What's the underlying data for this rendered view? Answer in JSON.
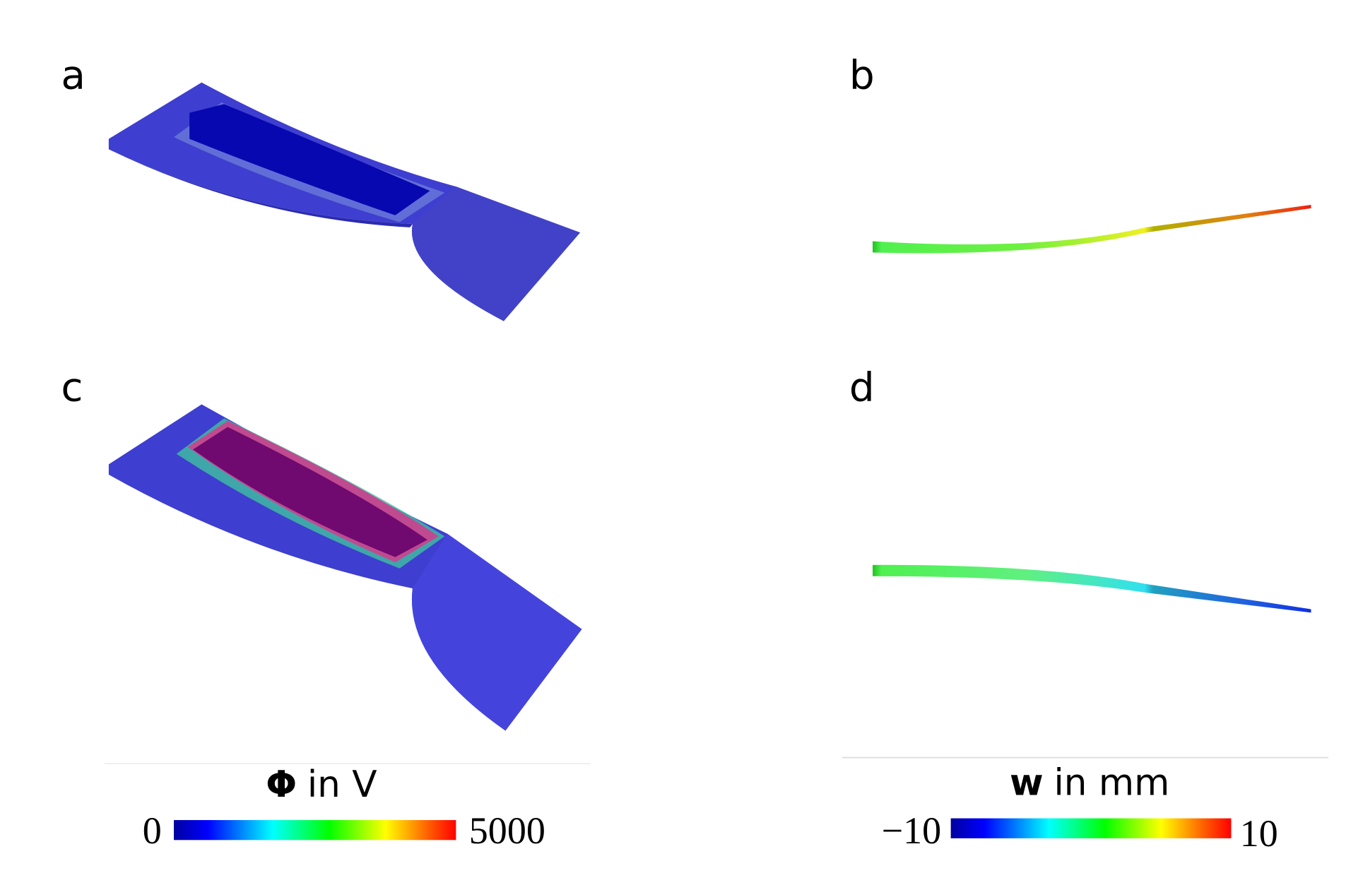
{
  "panels": [
    {
      "label": "a"
    },
    {
      "label": "b"
    },
    {
      "label": "c"
    },
    {
      "label": "d"
    }
  ],
  "colorbars": [
    {
      "symbol": "Φ",
      "unit": "in V",
      "min": "0",
      "max": "5000"
    },
    {
      "symbol": "w",
      "unit": "in mm",
      "min": "−10",
      "max": "10"
    }
  ]
}
